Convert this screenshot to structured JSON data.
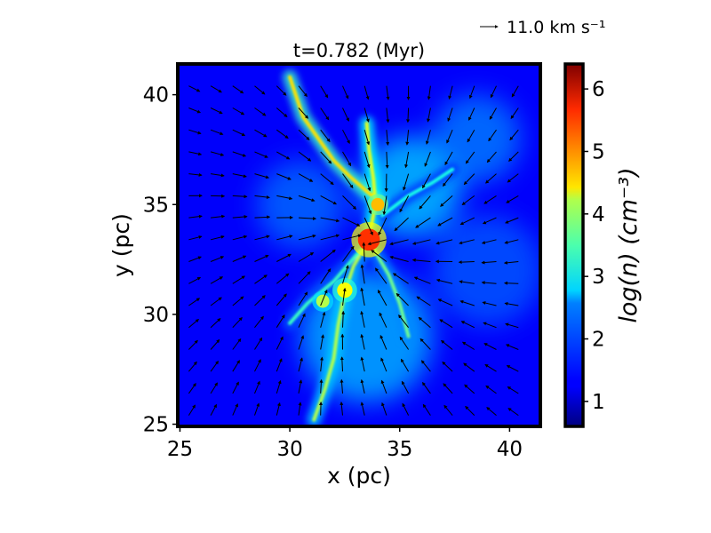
{
  "chart_data": {
    "type": "heatmap",
    "title": "t=0.782 (Myr)",
    "xlabel": "x (pc)",
    "ylabel": "y (pc)",
    "xlim": [
      24.9,
      41.4
    ],
    "ylim": [
      24.9,
      41.4
    ],
    "xticks": [
      25,
      30,
      35,
      40
    ],
    "yticks": [
      25,
      30,
      35,
      40
    ],
    "xtick_labels": [
      "25",
      "30",
      "35",
      "40"
    ],
    "ytick_labels": [
      "25",
      "30",
      "35",
      "40"
    ],
    "colorbar": {
      "label": "log(n) (cm⁻³)",
      "colormap": "jet",
      "range": [
        0.6,
        6.4
      ],
      "ticks": [
        1,
        2,
        3,
        4,
        5,
        6
      ],
      "tick_labels": [
        "1",
        "2",
        "3",
        "4",
        "5",
        "6"
      ]
    },
    "quiver_key": {
      "label": "11.0 km s⁻¹",
      "speed_km_s": 11.0
    },
    "density_features": {
      "background_log_n": 1.3,
      "filaments": [
        {
          "points": [
            [
              30.0,
              40.8
            ],
            [
              30.6,
              39.0
            ],
            [
              31.3,
              38.0
            ],
            [
              32.0,
              37.0
            ],
            [
              32.7,
              36.3
            ],
            [
              33.5,
              35.6
            ],
            [
              34.0,
              35.2
            ]
          ],
          "log_n": 4.4
        },
        {
          "points": [
            [
              33.5,
              38.7
            ],
            [
              33.6,
              37.5
            ],
            [
              33.8,
              36.2
            ],
            [
              33.9,
              35.0
            ],
            [
              33.7,
              34.0
            ]
          ],
          "log_n": 4.1
        },
        {
          "points": [
            [
              33.5,
              33.2
            ],
            [
              32.9,
              32.2
            ],
            [
              32.5,
              31.0
            ],
            [
              32.2,
              29.5
            ],
            [
              32.0,
              28.0
            ],
            [
              31.6,
              26.6
            ],
            [
              31.1,
              25.2
            ]
          ],
          "log_n": 3.8
        },
        {
          "points": [
            [
              33.8,
              33.0
            ],
            [
              34.5,
              31.8
            ],
            [
              35.0,
              30.5
            ],
            [
              35.4,
              29.0
            ]
          ],
          "log_n": 3.4
        },
        {
          "points": [
            [
              33.2,
              32.9
            ],
            [
              32.0,
              31.5
            ],
            [
              30.8,
              30.5
            ],
            [
              30.0,
              29.6
            ]
          ],
          "log_n": 3.1
        },
        {
          "points": [
            [
              34.2,
              34.5
            ],
            [
              35.4,
              35.4
            ],
            [
              36.5,
              36.0
            ],
            [
              37.4,
              36.6
            ]
          ],
          "log_n": 2.9
        }
      ],
      "clumps": [
        {
          "center": [
            33.6,
            33.4
          ],
          "radius_pc": 0.5,
          "log_n": 5.4
        },
        {
          "center": [
            34.0,
            35.0
          ],
          "radius_pc": 0.3,
          "log_n": 4.6
        },
        {
          "center": [
            32.5,
            31.1
          ],
          "radius_pc": 0.35,
          "log_n": 4.2
        },
        {
          "center": [
            31.5,
            30.6
          ],
          "radius_pc": 0.3,
          "log_n": 3.8
        }
      ],
      "diffuse_regions": [
        {
          "center": [
            35.5,
            35.8
          ],
          "radius_pc": 2.3,
          "log_n": 2.4
        },
        {
          "center": [
            33.5,
            29.0
          ],
          "radius_pc": 3.0,
          "log_n": 2.3
        },
        {
          "center": [
            39.0,
            32.0
          ],
          "radius_pc": 2.5,
          "log_n": 1.8
        },
        {
          "center": [
            30.5,
            35.0
          ],
          "radius_pc": 2.0,
          "log_n": 1.9
        },
        {
          "center": [
            38.5,
            38.0
          ],
          "radius_pc": 2.0,
          "log_n": 2.0
        }
      ]
    },
    "velocity_field": {
      "description": "converging flow toward the central clump",
      "center": [
        33.6,
        33.4
      ],
      "typical_speed_km_s": 9.0
    }
  }
}
